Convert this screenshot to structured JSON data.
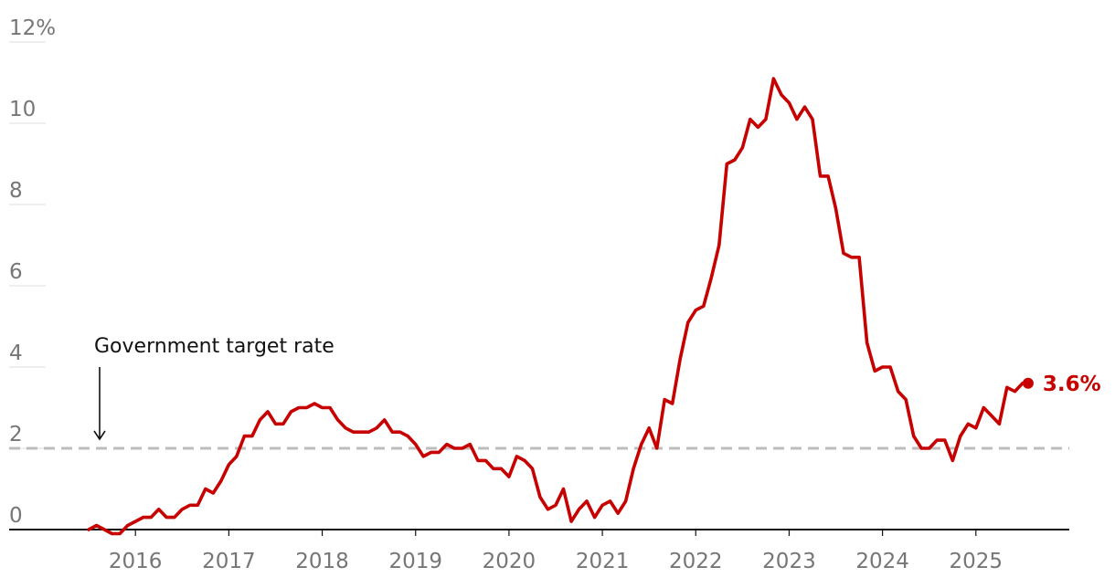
{
  "chart_data": {
    "type": "line",
    "title": "",
    "xlabel": "",
    "ylabel": "",
    "xlim": [
      2015.0,
      2026.0
    ],
    "ylim": [
      0,
      12
    ],
    "y_ticks": [
      {
        "value": 12,
        "label": "12%"
      },
      {
        "value": 10,
        "label": "10"
      },
      {
        "value": 8,
        "label": "8"
      },
      {
        "value": 6,
        "label": "6"
      },
      {
        "value": 4,
        "label": "4"
      },
      {
        "value": 2,
        "label": "2"
      },
      {
        "value": 0,
        "label": "0"
      }
    ],
    "x_ticks": [
      {
        "value": 2016,
        "label": "2016"
      },
      {
        "value": 2017,
        "label": "2017"
      },
      {
        "value": 2018,
        "label": "2018"
      },
      {
        "value": 2019,
        "label": "2019"
      },
      {
        "value": 2020,
        "label": "2020"
      },
      {
        "value": 2021,
        "label": "2021"
      },
      {
        "value": 2022,
        "label": "2022"
      },
      {
        "value": 2023,
        "label": "2023"
      },
      {
        "value": 2024,
        "label": "2024"
      },
      {
        "value": 2025,
        "label": "2025"
      }
    ],
    "grid": "horizontal",
    "target_line": {
      "value": 2,
      "label": "Government target rate",
      "color": "#bdbdbd"
    },
    "end_label": "3.6%",
    "series": [
      {
        "color": "#c70000",
        "points": [
          [
            2015.5,
            0.0
          ],
          [
            2015.583,
            0.1
          ],
          [
            2015.667,
            0.0
          ],
          [
            2015.75,
            -0.1
          ],
          [
            2015.833,
            -0.1
          ],
          [
            2015.917,
            0.1
          ],
          [
            2016.0,
            0.2
          ],
          [
            2016.083,
            0.3
          ],
          [
            2016.167,
            0.3
          ],
          [
            2016.25,
            0.5
          ],
          [
            2016.333,
            0.3
          ],
          [
            2016.417,
            0.3
          ],
          [
            2016.5,
            0.5
          ],
          [
            2016.583,
            0.6
          ],
          [
            2016.667,
            0.6
          ],
          [
            2016.75,
            1.0
          ],
          [
            2016.833,
            0.9
          ],
          [
            2016.917,
            1.2
          ],
          [
            2017.0,
            1.6
          ],
          [
            2017.083,
            1.8
          ],
          [
            2017.167,
            2.3
          ],
          [
            2017.25,
            2.3
          ],
          [
            2017.333,
            2.7
          ],
          [
            2017.417,
            2.9
          ],
          [
            2017.5,
            2.6
          ],
          [
            2017.583,
            2.6
          ],
          [
            2017.667,
            2.9
          ],
          [
            2017.75,
            3.0
          ],
          [
            2017.833,
            3.0
          ],
          [
            2017.917,
            3.1
          ],
          [
            2018.0,
            3.0
          ],
          [
            2018.083,
            3.0
          ],
          [
            2018.167,
            2.7
          ],
          [
            2018.25,
            2.5
          ],
          [
            2018.333,
            2.4
          ],
          [
            2018.417,
            2.4
          ],
          [
            2018.5,
            2.4
          ],
          [
            2018.583,
            2.5
          ],
          [
            2018.667,
            2.7
          ],
          [
            2018.75,
            2.4
          ],
          [
            2018.833,
            2.4
          ],
          [
            2018.917,
            2.3
          ],
          [
            2019.0,
            2.1
          ],
          [
            2019.083,
            1.8
          ],
          [
            2019.167,
            1.9
          ],
          [
            2019.25,
            1.9
          ],
          [
            2019.333,
            2.1
          ],
          [
            2019.417,
            2.0
          ],
          [
            2019.5,
            2.0
          ],
          [
            2019.583,
            2.1
          ],
          [
            2019.667,
            1.7
          ],
          [
            2019.75,
            1.7
          ],
          [
            2019.833,
            1.5
          ],
          [
            2019.917,
            1.5
          ],
          [
            2020.0,
            1.3
          ],
          [
            2020.083,
            1.8
          ],
          [
            2020.167,
            1.7
          ],
          [
            2020.25,
            1.5
          ],
          [
            2020.333,
            0.8
          ],
          [
            2020.417,
            0.5
          ],
          [
            2020.5,
            0.6
          ],
          [
            2020.583,
            1.0
          ],
          [
            2020.667,
            0.2
          ],
          [
            2020.75,
            0.5
          ],
          [
            2020.833,
            0.7
          ],
          [
            2020.917,
            0.3
          ],
          [
            2021.0,
            0.6
          ],
          [
            2021.083,
            0.7
          ],
          [
            2021.167,
            0.4
          ],
          [
            2021.25,
            0.7
          ],
          [
            2021.333,
            1.5
          ],
          [
            2021.417,
            2.1
          ],
          [
            2021.5,
            2.5
          ],
          [
            2021.583,
            2.0
          ],
          [
            2021.667,
            3.2
          ],
          [
            2021.75,
            3.1
          ],
          [
            2021.833,
            4.2
          ],
          [
            2021.917,
            5.1
          ],
          [
            2022.0,
            5.4
          ],
          [
            2022.083,
            5.5
          ],
          [
            2022.167,
            6.2
          ],
          [
            2022.25,
            7.0
          ],
          [
            2022.333,
            9.0
          ],
          [
            2022.417,
            9.1
          ],
          [
            2022.5,
            9.4
          ],
          [
            2022.583,
            10.1
          ],
          [
            2022.667,
            9.9
          ],
          [
            2022.75,
            10.1
          ],
          [
            2022.833,
            11.1
          ],
          [
            2022.917,
            10.7
          ],
          [
            2023.0,
            10.5
          ],
          [
            2023.083,
            10.1
          ],
          [
            2023.167,
            10.4
          ],
          [
            2023.25,
            10.1
          ],
          [
            2023.333,
            8.7
          ],
          [
            2023.417,
            8.7
          ],
          [
            2023.5,
            7.9
          ],
          [
            2023.583,
            6.8
          ],
          [
            2023.667,
            6.7
          ],
          [
            2023.75,
            6.7
          ],
          [
            2023.833,
            4.6
          ],
          [
            2023.917,
            3.9
          ],
          [
            2024.0,
            4.0
          ],
          [
            2024.083,
            4.0
          ],
          [
            2024.167,
            3.4
          ],
          [
            2024.25,
            3.2
          ],
          [
            2024.333,
            2.3
          ],
          [
            2024.417,
            2.0
          ],
          [
            2024.5,
            2.0
          ],
          [
            2024.583,
            2.2
          ],
          [
            2024.667,
            2.2
          ],
          [
            2024.75,
            1.7
          ],
          [
            2024.833,
            2.3
          ],
          [
            2024.917,
            2.6
          ],
          [
            2025.0,
            2.5
          ],
          [
            2025.083,
            3.0
          ],
          [
            2025.167,
            2.8
          ],
          [
            2025.25,
            2.6
          ],
          [
            2025.333,
            3.5
          ],
          [
            2025.417,
            3.4
          ],
          [
            2025.5,
            3.6
          ]
        ]
      }
    ]
  }
}
